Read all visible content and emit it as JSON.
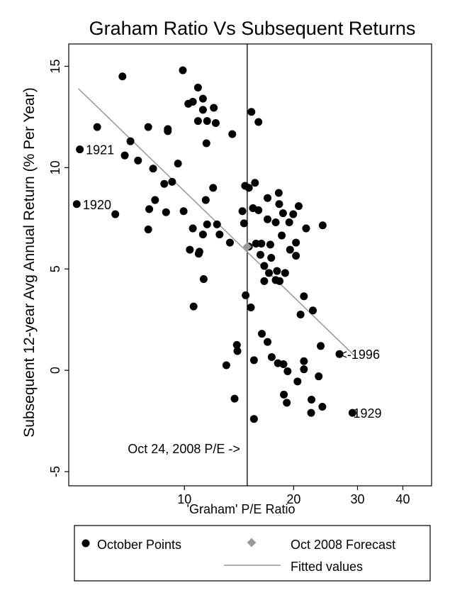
{
  "chart_data": {
    "type": "scatter",
    "title": "Graham Ratio Vs Subsequent Returns",
    "xlabel": "'Graham' P/E Ratio",
    "ylabel": "Subsequent 12-year Avg Annual Return (% Per Year)",
    "x_scale": "log",
    "xlim": [
      4.8,
      48
    ],
    "ylim": [
      -5.7,
      16.1
    ],
    "x_ticks": [
      {
        "value": 10,
        "label": "10"
      },
      {
        "value": 20,
        "label": "20"
      },
      {
        "value": 30,
        "label": "30"
      },
      {
        "value": 40,
        "label": "40"
      }
    ],
    "y_ticks": [
      {
        "value": -5,
        "label": "-5"
      },
      {
        "value": 0,
        "label": "0"
      },
      {
        "value": 5,
        "label": "5"
      },
      {
        "value": 10,
        "label": "10"
      },
      {
        "value": 15,
        "label": "15"
      }
    ],
    "grid": false,
    "legend_position": "bottom",
    "legend": {
      "points_label": "October Points",
      "forecast_label": "Oct 2008 Forecast",
      "fit_label": "Fitted values"
    },
    "colors": {
      "points": "#000000",
      "forecast": "#999999",
      "fit": "#999999",
      "vline": "#000000"
    },
    "vline": {
      "x": 14.9,
      "label": "Oct 24, 2008 P/E ->"
    },
    "annotations": [
      {
        "text": "1921",
        "x": 5.35,
        "y": 10.9,
        "anchor": "start"
      },
      {
        "text": "1920",
        "x": 5.25,
        "y": 8.2,
        "anchor": "start"
      },
      {
        "text": "<-1996",
        "x": 26.8,
        "y": 0.8,
        "anchor": "start"
      },
      {
        "text": "1929",
        "x": 29.2,
        "y": -2.1,
        "anchor": "start"
      }
    ],
    "forecast": {
      "name": "Oct 2008 Forecast",
      "x": 14.9,
      "y": 6.1
    },
    "fitted": {
      "name": "Fitted values",
      "x": [
        5.1,
        29.5
      ],
      "y": [
        13.9,
        0.7
      ]
    },
    "series": [
      {
        "name": "October Points",
        "points": [
          [
            5.15,
            10.9
          ],
          [
            5.05,
            8.2
          ],
          [
            5.75,
            12.0
          ],
          [
            6.45,
            7.7
          ],
          [
            6.85,
            10.6
          ],
          [
            6.75,
            14.5
          ],
          [
            7.1,
            11.3
          ],
          [
            7.45,
            10.35
          ],
          [
            7.95,
            12.0
          ],
          [
            8.0,
            7.95
          ],
          [
            7.95,
            6.95
          ],
          [
            8.2,
            9.95
          ],
          [
            8.3,
            8.4
          ],
          [
            8.8,
            9.2
          ],
          [
            8.9,
            7.8
          ],
          [
            9.0,
            11.8
          ],
          [
            9.0,
            11.9
          ],
          [
            9.25,
            9.3
          ],
          [
            9.6,
            10.2
          ],
          [
            9.95,
            7.85
          ],
          [
            9.9,
            14.8
          ],
          [
            10.25,
            13.15
          ],
          [
            10.55,
            13.25
          ],
          [
            10.35,
            5.95
          ],
          [
            10.55,
            7.0
          ],
          [
            10.6,
            3.15
          ],
          [
            10.9,
            12.3
          ],
          [
            10.9,
            13.95
          ],
          [
            11.0,
            5.85
          ],
          [
            10.95,
            5.75
          ],
          [
            11.25,
            13.4
          ],
          [
            11.25,
            12.85
          ],
          [
            11.25,
            6.7
          ],
          [
            11.3,
            4.5
          ],
          [
            11.45,
            8.4
          ],
          [
            11.55,
            7.2
          ],
          [
            11.55,
            12.3
          ],
          [
            11.5,
            11.2
          ],
          [
            12.0,
            9.0
          ],
          [
            12.05,
            12.95
          ],
          [
            12.2,
            12.2
          ],
          [
            12.3,
            7.2
          ],
          [
            12.5,
            6.7
          ],
          [
            13.05,
            0.25
          ],
          [
            13.35,
            6.3
          ],
          [
            13.55,
            11.65
          ],
          [
            13.75,
            -1.4
          ],
          [
            13.95,
            1.25
          ],
          [
            14.0,
            0.95
          ],
          [
            14.45,
            7.85
          ],
          [
            14.7,
            9.1
          ],
          [
            14.6,
            7.25
          ],
          [
            14.75,
            3.7
          ],
          [
            15.05,
            9.0
          ],
          [
            15.05,
            6.1
          ],
          [
            15.25,
            3.1
          ],
          [
            15.3,
            12.75
          ],
          [
            15.45,
            8.0
          ],
          [
            15.55,
            0.5
          ],
          [
            15.55,
            -2.4
          ],
          [
            15.65,
            9.25
          ],
          [
            15.75,
            6.25
          ],
          [
            16.0,
            7.9
          ],
          [
            16.0,
            12.25
          ],
          [
            16.2,
            5.7
          ],
          [
            16.3,
            6.25
          ],
          [
            16.35,
            1.8
          ],
          [
            16.6,
            4.4
          ],
          [
            16.6,
            5.15
          ],
          [
            16.95,
            8.5
          ],
          [
            16.95,
            7.45
          ],
          [
            16.95,
            1.4
          ],
          [
            17.1,
            4.8
          ],
          [
            17.25,
            6.2
          ],
          [
            17.35,
            5.55
          ],
          [
            17.4,
            0.65
          ],
          [
            17.85,
            7.3
          ],
          [
            17.85,
            4.45
          ],
          [
            18.0,
            4.9
          ],
          [
            18.1,
            0.35
          ],
          [
            18.2,
            8.75
          ],
          [
            18.25,
            8.2
          ],
          [
            18.3,
            4.4
          ],
          [
            18.55,
            6.65
          ],
          [
            18.7,
            7.75
          ],
          [
            18.75,
            0.3
          ],
          [
            18.8,
            -1.2
          ],
          [
            18.95,
            4.8
          ],
          [
            19.15,
            -1.6
          ],
          [
            19.25,
            -0.05
          ],
          [
            19.45,
            7.3
          ],
          [
            19.55,
            5.95
          ],
          [
            19.95,
            7.7
          ],
          [
            20.3,
            6.3
          ],
          [
            20.3,
            5.65
          ],
          [
            20.5,
            -0.55
          ],
          [
            20.65,
            8.1
          ],
          [
            20.9,
            2.75
          ],
          [
            21.35,
            3.65
          ],
          [
            21.35,
            0.45
          ],
          [
            21.35,
            0.05
          ],
          [
            21.65,
            7.0
          ],
          [
            22.4,
            -1.45
          ],
          [
            22.35,
            -2.1
          ],
          [
            22.6,
            2.95
          ],
          [
            23.45,
            -0.3
          ],
          [
            23.75,
            1.2
          ],
          [
            24.05,
            7.15
          ],
          [
            24.0,
            -1.8
          ],
          [
            26.75,
            0.8
          ],
          [
            29.05,
            -2.1
          ]
        ]
      }
    ]
  }
}
